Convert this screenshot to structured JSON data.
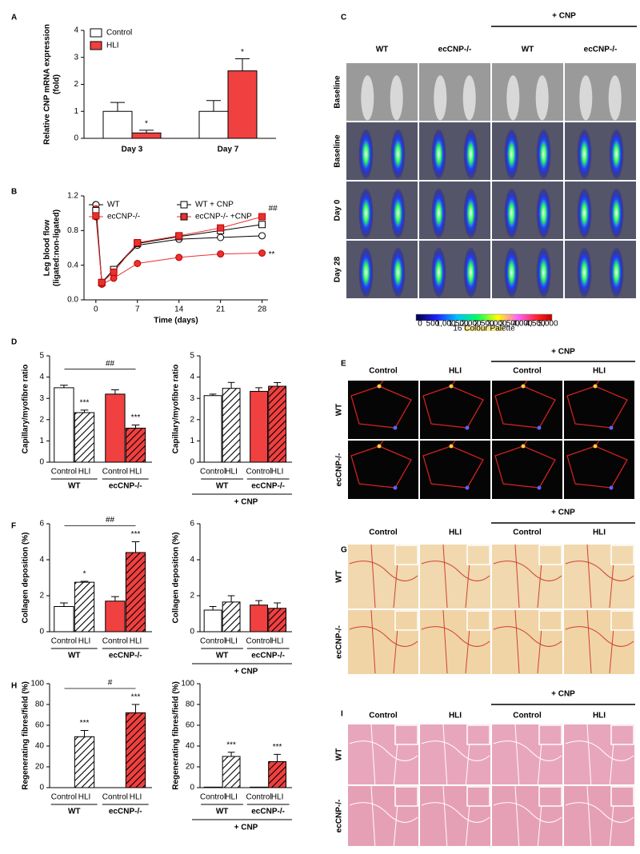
{
  "chart_data": [
    {
      "panel": "A",
      "type": "bar",
      "ylabel": [
        "Relative CNP mRNA expression",
        "(fold)"
      ],
      "categories": [
        "Day 3",
        "Day 7"
      ],
      "series": [
        {
          "name": "Control",
          "color": "#ffffff",
          "values": [
            1.0,
            1.0
          ],
          "errors": [
            0.33,
            0.4
          ]
        },
        {
          "name": "HLI",
          "color": "#f04040",
          "values": [
            0.2,
            2.5
          ],
          "errors": [
            0.1,
            0.45
          ],
          "annotations": [
            "*",
            "*"
          ]
        }
      ],
      "ylim": [
        0,
        4
      ],
      "yticks": [
        0,
        1,
        2,
        3,
        4
      ],
      "legend": "upper left"
    },
    {
      "panel": "B",
      "type": "line",
      "ylabel": [
        "Leg blood flow",
        "(ligated:non-ligated)"
      ],
      "xlabel": "Time (days)",
      "x": [
        0,
        1,
        3,
        7,
        14,
        21,
        28
      ],
      "series": [
        {
          "name": "WT",
          "color": "#ffffff",
          "marker": "circle",
          "values": [
            1.1,
            0.2,
            0.35,
            0.63,
            0.7,
            0.72,
            0.74
          ]
        },
        {
          "name": "ecCNP-/-",
          "color": "#e8312f",
          "marker": "circle",
          "values": [
            1.05,
            0.18,
            0.25,
            0.42,
            0.49,
            0.53,
            0.54
          ]
        },
        {
          "name": "WT + CNP",
          "color": "#ffffff",
          "marker": "square",
          "values": [
            1.03,
            0.2,
            0.35,
            0.65,
            0.73,
            0.8,
            0.87
          ]
        },
        {
          "name": "ecCNP-/- +CNP",
          "color": "#e8312f",
          "marker": "square",
          "values": [
            0.97,
            0.2,
            0.32,
            0.66,
            0.74,
            0.83,
            0.96
          ]
        }
      ],
      "annotations": [
        {
          "series": 3,
          "text": "##"
        },
        {
          "series": 1,
          "text": "**"
        }
      ],
      "xlim": [
        -2,
        29
      ],
      "xticks": [
        0,
        7,
        14,
        21,
        28
      ],
      "ylim": [
        0,
        1.2
      ],
      "yticks": [
        {
          "value": 0,
          "label": "0.0"
        },
        0.4,
        0.8,
        1.2
      ]
    },
    {
      "panel": "D",
      "type": "bar",
      "ylabel": "Capillary/myofibre ratio",
      "categories": [
        "Control",
        "HLI",
        "Control",
        "HLI"
      ],
      "groups": [
        "WT",
        "ecCNP-/-"
      ],
      "values": [
        3.5,
        2.33,
        3.2,
        1.6
      ],
      "errors": [
        0.12,
        0.12,
        0.2,
        0.15
      ],
      "colors": [
        "#ffffff",
        "#ffffff",
        "#f04040",
        "#f04040"
      ],
      "hatch": [
        false,
        true,
        false,
        true
      ],
      "annotations": [
        null,
        "***",
        null,
        "***"
      ],
      "bracket": {
        "from": 1,
        "to": 3,
        "text": "##"
      },
      "ylim": [
        0,
        5
      ],
      "yticks": [
        0,
        1,
        2,
        3,
        4,
        5
      ]
    },
    {
      "type": "bar",
      "ylabel": "Capillary/myofibre ratio",
      "categories": [
        "Control",
        "HLI",
        "Control",
        "HLI"
      ],
      "groups": [
        "WT",
        "ecCNP-/-"
      ],
      "group_label": "+ CNP",
      "values": [
        3.13,
        3.47,
        3.33,
        3.57
      ],
      "errors": [
        0.07,
        0.28,
        0.17,
        0.17
      ],
      "colors": [
        "#ffffff",
        "#ffffff",
        "#f04040",
        "#f04040"
      ],
      "hatch": [
        false,
        true,
        false,
        true
      ],
      "ylim": [
        0,
        5
      ],
      "yticks": [
        0,
        1,
        2,
        3,
        4,
        5
      ]
    },
    {
      "panel": "F",
      "type": "bar",
      "ylabel": "Collagen deposition (%)",
      "categories": [
        "Control",
        "HLI",
        "Control",
        "HLI"
      ],
      "groups": [
        "WT",
        "ecCNP-/-"
      ],
      "values": [
        1.4,
        2.75,
        1.7,
        4.4
      ],
      "errors": [
        0.2,
        0.05,
        0.25,
        0.6
      ],
      "colors": [
        "#ffffff",
        "#ffffff",
        "#f04040",
        "#f04040"
      ],
      "hatch": [
        false,
        true,
        false,
        true
      ],
      "annotations": [
        null,
        "*",
        null,
        "***"
      ],
      "bracket": {
        "from": 1,
        "to": 3,
        "text": "##"
      },
      "ylim": [
        0,
        6
      ],
      "yticks": [
        0,
        2,
        4,
        6
      ]
    },
    {
      "type": "bar",
      "ylabel": "Collagen deposition (%)",
      "categories": [
        "Control",
        "HLI",
        "Control",
        "HLI"
      ],
      "groups": [
        "WT",
        "ecCNP-/-"
      ],
      "group_label": "+ CNP",
      "values": [
        1.2,
        1.65,
        1.48,
        1.3
      ],
      "errors": [
        0.2,
        0.35,
        0.25,
        0.3
      ],
      "colors": [
        "#ffffff",
        "#ffffff",
        "#f04040",
        "#f04040"
      ],
      "hatch": [
        false,
        true,
        false,
        true
      ],
      "ylim": [
        0,
        6
      ],
      "yticks": [
        0,
        2,
        4,
        6
      ]
    },
    {
      "panel": "H",
      "type": "bar",
      "ylabel": "Regenerating fibres/field (%)",
      "categories": [
        "Control",
        "HLI",
        "Control",
        "HLI"
      ],
      "groups": [
        "WT",
        "ecCNP-/-"
      ],
      "values": [
        0,
        49,
        0,
        72
      ],
      "errors": [
        0,
        6,
        0,
        8
      ],
      "colors": [
        "#ffffff",
        "#ffffff",
        "#f04040",
        "#f04040"
      ],
      "hatch": [
        false,
        true,
        false,
        true
      ],
      "annotations": [
        null,
        "***",
        null,
        "***"
      ],
      "bracket": {
        "from": 1,
        "to": 3,
        "text": "#"
      },
      "ylim": [
        0,
        100
      ],
      "yticks": [
        0,
        20,
        40,
        60,
        80,
        100
      ]
    },
    {
      "type": "bar",
      "ylabel": "Regenerating fibres/field (%)",
      "categories": [
        "Control",
        "HLI",
        "Control",
        "HLI"
      ],
      "groups": [
        "WT",
        "ecCNP-/-"
      ],
      "group_label": "+ CNP",
      "values": [
        0.5,
        30,
        0.5,
        25
      ],
      "errors": [
        0,
        4,
        0,
        7
      ],
      "colors": [
        "#ffffff",
        "#ffffff",
        "#f04040",
        "#f04040"
      ],
      "hatch": [
        false,
        true,
        false,
        true
      ],
      "annotations": [
        null,
        "***",
        null,
        "***"
      ],
      "ylim": [
        0,
        100
      ],
      "yticks": [
        0,
        20,
        40,
        60,
        80,
        100
      ]
    }
  ],
  "image_panels": [
    {
      "letter": "C",
      "header": "+ CNP",
      "columns": [
        "WT",
        "ecCNP-/-",
        "WT",
        "ecCNP-/-"
      ],
      "rows": [
        "Baseline",
        "Baseline",
        "Day 0",
        "Day 28"
      ],
      "scale": {
        "labels": [
          "0",
          "500",
          "1,000",
          "1,500",
          "2,000",
          "2,500",
          "3,000",
          "3,500",
          "4,000",
          "4,500",
          "5,000"
        ],
        "title": "16 Colour Palette"
      }
    },
    {
      "letter": "E",
      "header": "+ CNP",
      "columns": [
        "Control",
        "HLI",
        "Control",
        "HLI"
      ],
      "rows": [
        "WT",
        "ecCNP-/-"
      ]
    },
    {
      "letter": "G",
      "header": "+ CNP",
      "columns": [
        "Control",
        "HLI",
        "Control",
        "HLI"
      ],
      "rows": [
        "WT",
        "ecCNP-/-"
      ]
    },
    {
      "letter": "I",
      "header": "+ CNP",
      "columns": [
        "Control",
        "HLI",
        "Control",
        "HLI"
      ],
      "rows": [
        "WT",
        "ecCNP-/-"
      ]
    }
  ]
}
